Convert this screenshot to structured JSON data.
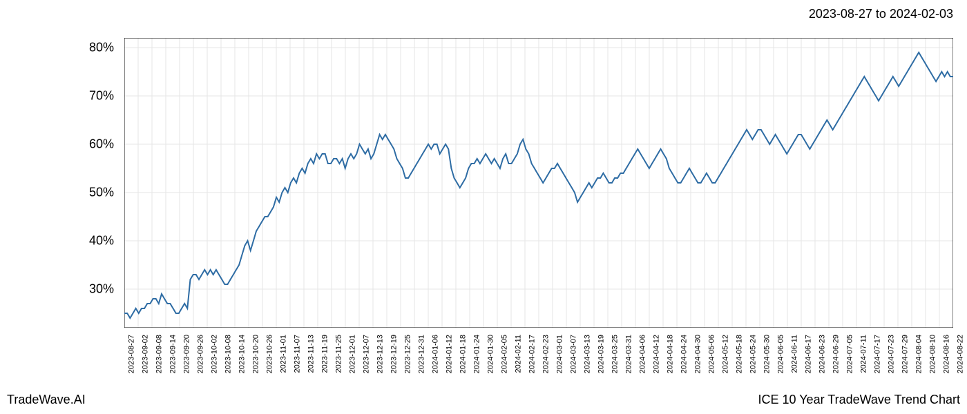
{
  "header": {
    "date_range": "2023-08-27 to 2024-02-03"
  },
  "footer": {
    "left": "TradeWave.AI",
    "right": "ICE 10 Year TradeWave Trend Chart"
  },
  "chart": {
    "type": "line",
    "background_color": "#ffffff",
    "grid_color": "#e5e5e5",
    "border_color": "#000000",
    "line_color": "#2e6ca4",
    "line_width": 2,
    "highlight_region": {
      "fill": "#d9e8d4",
      "opacity": 0.6,
      "x_start_label": "2023-08-27",
      "x_end_label": "2024-02-03"
    },
    "y_axis": {
      "min": 22,
      "max": 82,
      "ticks": [
        30,
        40,
        50,
        60,
        70,
        80
      ],
      "tick_labels": [
        "30%",
        "40%",
        "50%",
        "60%",
        "70%",
        "80%"
      ],
      "tick_fontsize": 18
    },
    "x_axis": {
      "labels": [
        "2023-08-27",
        "2023-09-02",
        "2023-09-08",
        "2023-09-14",
        "2023-09-20",
        "2023-09-26",
        "2023-10-02",
        "2023-10-08",
        "2023-10-14",
        "2023-10-20",
        "2023-10-26",
        "2023-11-01",
        "2023-11-07",
        "2023-11-13",
        "2023-11-19",
        "2023-11-25",
        "2023-12-01",
        "2023-12-07",
        "2023-12-13",
        "2023-12-19",
        "2023-12-25",
        "2023-12-31",
        "2024-01-06",
        "2024-01-12",
        "2024-01-18",
        "2024-01-24",
        "2024-01-30",
        "2024-02-05",
        "2024-02-11",
        "2024-02-17",
        "2024-02-23",
        "2024-03-01",
        "2024-03-07",
        "2024-03-13",
        "2024-03-19",
        "2024-03-25",
        "2024-03-31",
        "2024-04-06",
        "2024-04-12",
        "2024-04-18",
        "2024-04-24",
        "2024-04-30",
        "2024-05-06",
        "2024-05-12",
        "2024-05-18",
        "2024-05-24",
        "2024-05-30",
        "2024-06-05",
        "2024-06-11",
        "2024-06-17",
        "2024-06-23",
        "2024-06-29",
        "2024-07-05",
        "2024-07-11",
        "2024-07-17",
        "2024-07-23",
        "2024-07-29",
        "2024-08-04",
        "2024-08-10",
        "2024-08-16",
        "2024-08-22"
      ],
      "tick_fontsize": 11,
      "rotation": -90
    },
    "series": [
      {
        "name": "trend",
        "values": [
          25,
          25,
          24,
          25,
          26,
          25,
          26,
          26,
          27,
          27,
          28,
          28,
          27,
          29,
          28,
          27,
          27,
          26,
          25,
          25,
          26,
          27,
          26,
          32,
          33,
          33,
          32,
          33,
          34,
          33,
          34,
          33,
          34,
          33,
          32,
          31,
          31,
          32,
          33,
          34,
          35,
          37,
          39,
          40,
          38,
          40,
          42,
          43,
          44,
          45,
          45,
          46,
          47,
          49,
          48,
          50,
          51,
          50,
          52,
          53,
          52,
          54,
          55,
          54,
          56,
          57,
          56,
          58,
          57,
          58,
          58,
          56,
          56,
          57,
          57,
          56,
          57,
          55,
          57,
          58,
          57,
          58,
          60,
          59,
          58,
          59,
          57,
          58,
          60,
          62,
          61,
          62,
          61,
          60,
          59,
          57,
          56,
          55,
          53,
          53,
          54,
          55,
          56,
          57,
          58,
          59,
          60,
          59,
          60,
          60,
          58,
          59,
          60,
          59,
          55,
          53,
          52,
          51,
          52,
          53,
          55,
          56,
          56,
          57,
          56,
          57,
          58,
          57,
          56,
          57,
          56,
          55,
          57,
          58,
          56,
          56,
          57,
          58,
          60,
          61,
          59,
          58,
          56,
          55,
          54,
          53,
          52,
          53,
          54,
          55,
          55,
          56,
          55,
          54,
          53,
          52,
          51,
          50,
          48,
          49,
          50,
          51,
          52,
          51,
          52,
          53,
          53,
          54,
          53,
          52,
          52,
          53,
          53,
          54,
          54,
          55,
          56,
          57,
          58,
          59,
          58,
          57,
          56,
          55,
          56,
          57,
          58,
          59,
          58,
          57,
          55,
          54,
          53,
          52,
          52,
          53,
          54,
          55,
          54,
          53,
          52,
          52,
          53,
          54,
          53,
          52,
          52,
          53,
          54,
          55,
          56,
          57,
          58,
          59,
          60,
          61,
          62,
          63,
          62,
          61,
          62,
          63,
          63,
          62,
          61,
          60,
          61,
          62,
          61,
          60,
          59,
          58,
          59,
          60,
          61,
          62,
          62,
          61,
          60,
          59,
          60,
          61,
          62,
          63,
          64,
          65,
          64,
          63,
          64,
          65,
          66,
          67,
          68,
          69,
          70,
          71,
          72,
          73,
          74,
          73,
          72,
          71,
          70,
          69,
          70,
          71,
          72,
          73,
          74,
          73,
          72,
          73,
          74,
          75,
          76,
          77,
          78,
          79,
          78,
          77,
          76,
          75,
          74,
          73,
          74,
          75,
          74,
          75,
          74,
          74
        ]
      }
    ]
  }
}
